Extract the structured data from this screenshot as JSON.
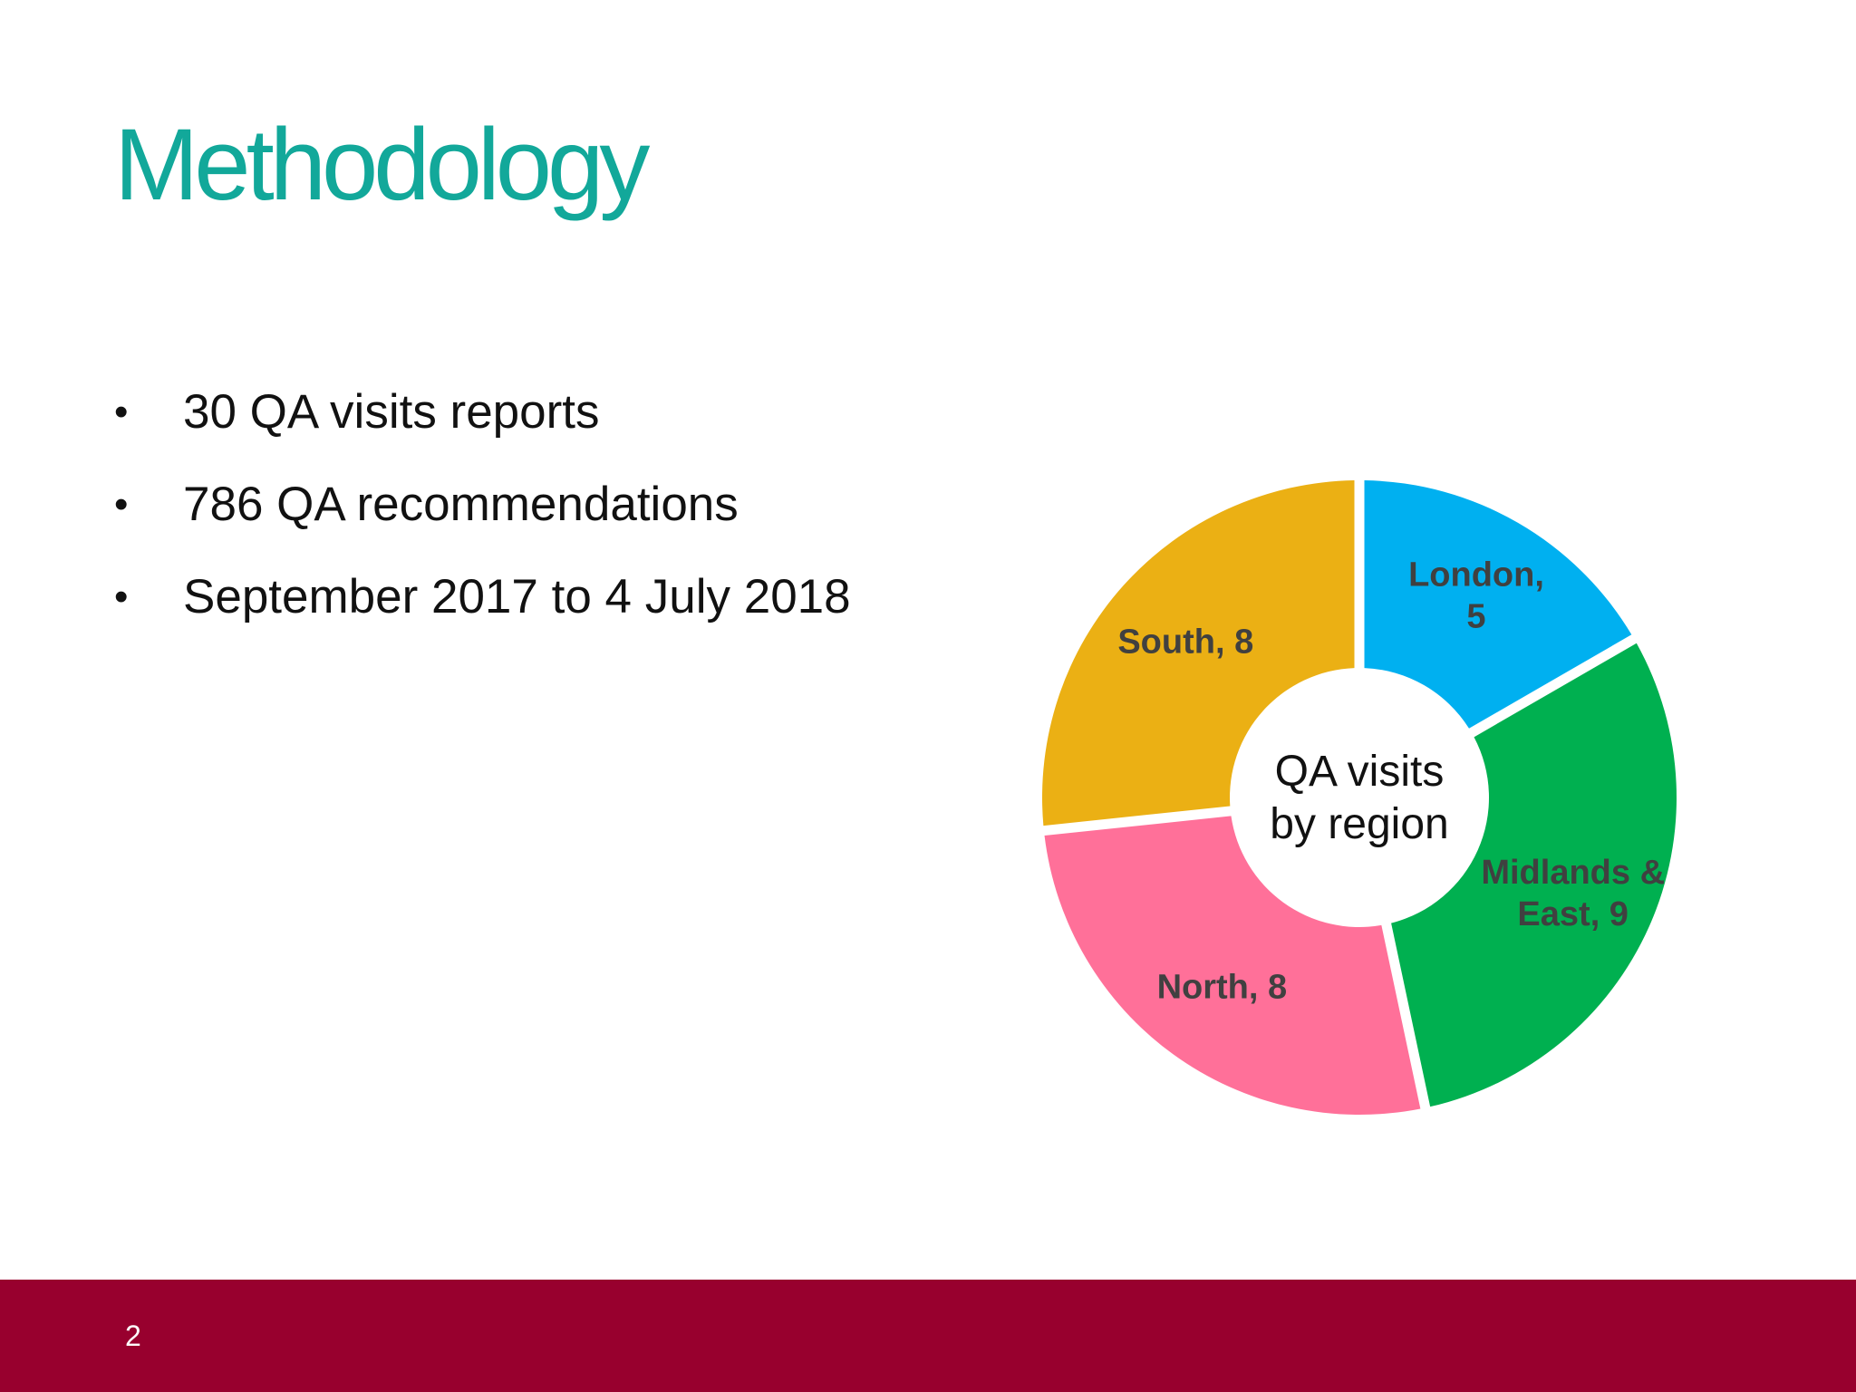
{
  "slide": {
    "title": "Methodology",
    "bullets": [
      {
        "text": "30 QA visits reports"
      },
      {
        "text": "786 QA recommendations"
      },
      {
        "text": "September 2017 to 4 July 2018"
      }
    ],
    "bullet_symbol": "•",
    "page_number": "2"
  },
  "colors": {
    "title": "#12a89a",
    "footer": "#98002e",
    "label": "#404040"
  },
  "chart_data": {
    "type": "pie",
    "variant": "donut",
    "center_label_lines": [
      "QA visits",
      "by region"
    ],
    "categories": [
      "London",
      "Midlands & East",
      "North",
      "South"
    ],
    "values": [
      5,
      9,
      8,
      8
    ],
    "label_lines": [
      [
        "London,",
        "5"
      ],
      [
        "Midlands &",
        "East, 9"
      ],
      [
        "North, 8"
      ],
      [
        "South, 8"
      ]
    ],
    "colors": [
      "#00b0f0",
      "#00b050",
      "#ff7099",
      "#ebb014"
    ],
    "start_angle": "12 o'clock",
    "direction": "clockwise",
    "legend": "none",
    "data_labels": "category, value"
  }
}
